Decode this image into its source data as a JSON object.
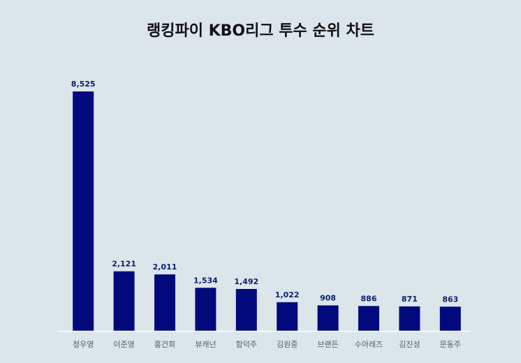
{
  "chart_data": {
    "type": "bar",
    "title": "랭킹파이 KBO리그 투수 순위 차트",
    "categories": [
      "정우영",
      "이준영",
      "홍건희",
      "뷰캐넌",
      "함덕주",
      "김원중",
      "브랜든",
      "수아레즈",
      "김진성",
      "문동주"
    ],
    "values": [
      8525,
      2121,
      2011,
      1534,
      1492,
      1022,
      908,
      886,
      871,
      863
    ],
    "value_labels": [
      "8,525",
      "2,121",
      "2,011",
      "1,534",
      "1,492",
      "1,022",
      "908",
      "886",
      "871",
      "863"
    ],
    "xlabel": "",
    "ylabel": "",
    "ylim": [
      0,
      8525
    ],
    "grid": false,
    "legend": "none",
    "colors": {
      "bar": "#000a7d",
      "value_label": "#0a1e6e",
      "baseline": "#ffffff",
      "background": "#dce5ea"
    }
  }
}
